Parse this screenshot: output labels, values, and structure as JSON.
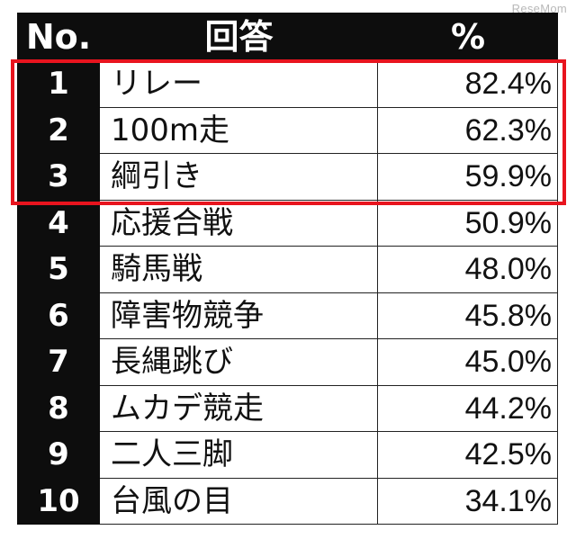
{
  "watermark": "ReseMom",
  "highlight_color": "#e8141e",
  "chart_data": {
    "type": "table",
    "columns": [
      "No.",
      "回答",
      "%"
    ],
    "rows": [
      {
        "rank": "1",
        "answer": "リレー",
        "percent": "82.4%"
      },
      {
        "rank": "2",
        "answer": "100m走",
        "percent": "62.3%"
      },
      {
        "rank": "3",
        "answer": "綱引き",
        "percent": "59.9%"
      },
      {
        "rank": "4",
        "answer": "応援合戦",
        "percent": "50.9%"
      },
      {
        "rank": "5",
        "answer": "騎馬戦",
        "percent": "48.0%"
      },
      {
        "rank": "6",
        "answer": "障害物競争",
        "percent": "45.8%"
      },
      {
        "rank": "7",
        "answer": "長縄跳び",
        "percent": "45.0%"
      },
      {
        "rank": "8",
        "answer": "ムカデ競走",
        "percent": "44.2%"
      },
      {
        "rank": "9",
        "answer": "二人三脚",
        "percent": "42.5%"
      },
      {
        "rank": "10",
        "answer": "台風の目",
        "percent": "34.1%"
      }
    ],
    "highlighted_ranks": [
      "1",
      "2",
      "3"
    ]
  }
}
